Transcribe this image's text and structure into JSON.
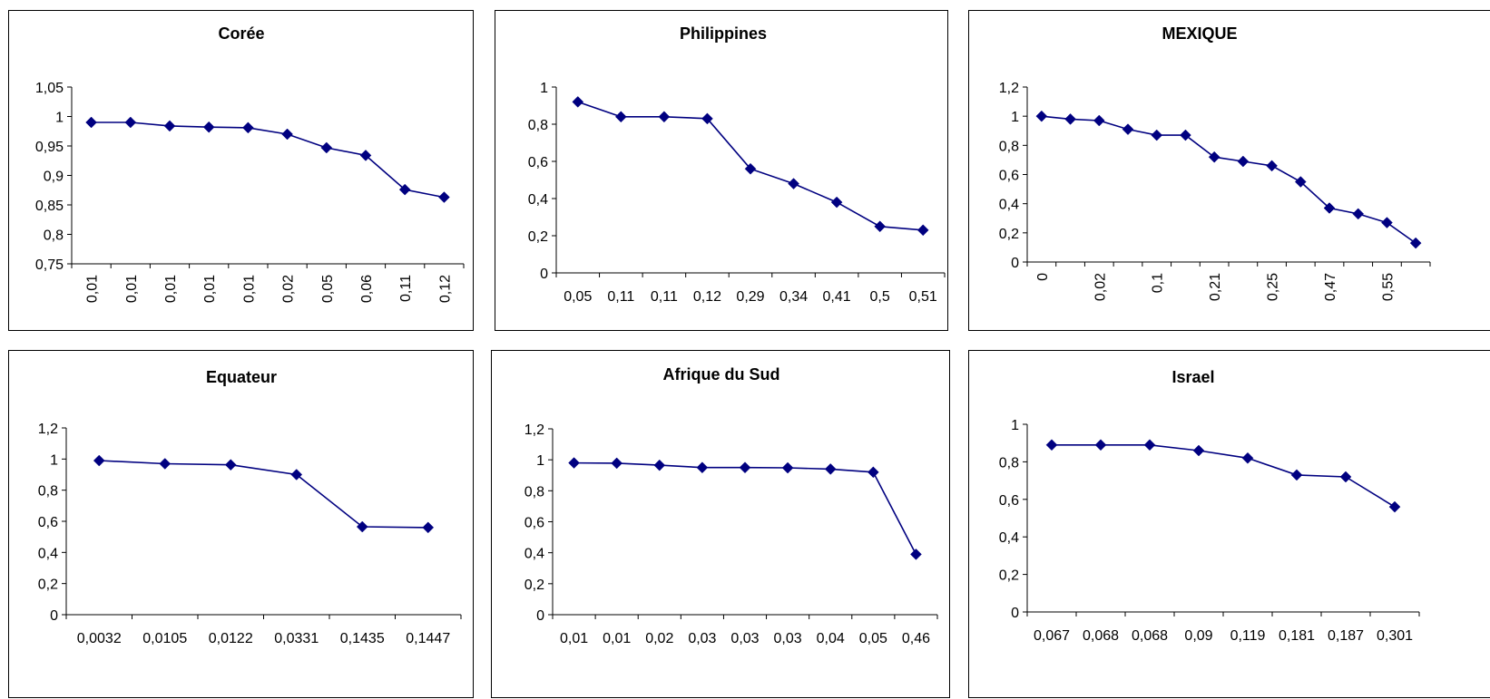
{
  "colors": {
    "series": "#000080",
    "axis": "#000000",
    "background": "#ffffff"
  },
  "chart_data": [
    {
      "type": "line",
      "title": "Corée",
      "categories": [
        "0,01",
        "0,01",
        "0,01",
        "0,01",
        "0,01",
        "0,02",
        "0,05",
        "0,06",
        "0,11",
        "0,12"
      ],
      "values": [
        0.99,
        0.99,
        0.984,
        0.982,
        0.981,
        0.97,
        0.947,
        0.934,
        0.876,
        0.863
      ],
      "ylim": [
        0.75,
        1.05
      ],
      "yticks": [
        "0,75",
        "0,8",
        "0,85",
        "0,9",
        "0,95",
        "1",
        "1,05"
      ],
      "xlabel_rotated": true,
      "marker": "diamond",
      "grid": false,
      "legend": "none"
    },
    {
      "type": "line",
      "title": "Philippines",
      "categories": [
        "0,05",
        "0,11",
        "0,11",
        "0,12",
        "0,29",
        "0,34",
        "0,41",
        "0,5",
        "0,51"
      ],
      "values": [
        0.92,
        0.84,
        0.84,
        0.83,
        0.56,
        0.48,
        0.38,
        0.25,
        0.23
      ],
      "ylim": [
        0,
        1
      ],
      "yticks": [
        "0",
        "0,2",
        "0,4",
        "0,6",
        "0,8",
        "1"
      ],
      "xlabel_rotated": false,
      "marker": "diamond",
      "grid": false,
      "legend": "none"
    },
    {
      "type": "line",
      "title": "MEXIQUE",
      "categories": [
        "0",
        "",
        "0,02",
        "",
        "0,1",
        "",
        "0,21",
        "",
        "0,25",
        "",
        "0,47",
        "",
        "0,55",
        ""
      ],
      "values": [
        1.0,
        0.98,
        0.97,
        0.91,
        0.87,
        0.87,
        0.72,
        0.69,
        0.66,
        0.55,
        0.37,
        0.33,
        0.27,
        0.13
      ],
      "ylim": [
        0,
        1.2
      ],
      "yticks": [
        "0",
        "0,2",
        "0,4",
        "0,6",
        "0,8",
        "1",
        "1,2"
      ],
      "xlabel_rotated": true,
      "marker": "diamond",
      "grid": false,
      "legend": "none"
    },
    {
      "type": "line",
      "title": "Equateur",
      "categories": [
        "0,0032",
        "0,0105",
        "0,0122",
        "0,0331",
        "0,1435",
        "0,1447"
      ],
      "values": [
        0.99,
        0.97,
        0.963,
        0.9,
        0.565,
        0.56
      ],
      "ylim": [
        0,
        1.2
      ],
      "yticks": [
        "0",
        "0,2",
        "0,4",
        "0,6",
        "0,8",
        "1",
        "1,2"
      ],
      "xlabel_rotated": false,
      "marker": "diamond",
      "grid": false,
      "legend": "none"
    },
    {
      "type": "line",
      "title": "Afrique du Sud",
      "categories": [
        "0,01",
        "0,01",
        "0,02",
        "0,03",
        "0,03",
        "0,03",
        "0,04",
        "0,05",
        "0,46"
      ],
      "values": [
        0.98,
        0.978,
        0.965,
        0.95,
        0.95,
        0.948,
        0.94,
        0.92,
        0.39
      ],
      "ylim": [
        0,
        1.2
      ],
      "yticks": [
        "0",
        "0,2",
        "0,4",
        "0,6",
        "0,8",
        "1",
        "1,2"
      ],
      "xlabel_rotated": false,
      "marker": "diamond",
      "grid": false,
      "legend": "none"
    },
    {
      "type": "line",
      "title": "Israel",
      "categories": [
        "0,067",
        "0,068",
        "0,068",
        "0,09",
        "0,119",
        "0,181",
        "0,187",
        "0,301"
      ],
      "values": [
        0.89,
        0.89,
        0.89,
        0.86,
        0.82,
        0.73,
        0.72,
        0.56
      ],
      "ylim": [
        0,
        1
      ],
      "yticks": [
        "0",
        "0,2",
        "0,4",
        "0,6",
        "0,8",
        "1"
      ],
      "xlabel_rotated": false,
      "marker": "diamond",
      "grid": false,
      "legend": "none"
    }
  ]
}
